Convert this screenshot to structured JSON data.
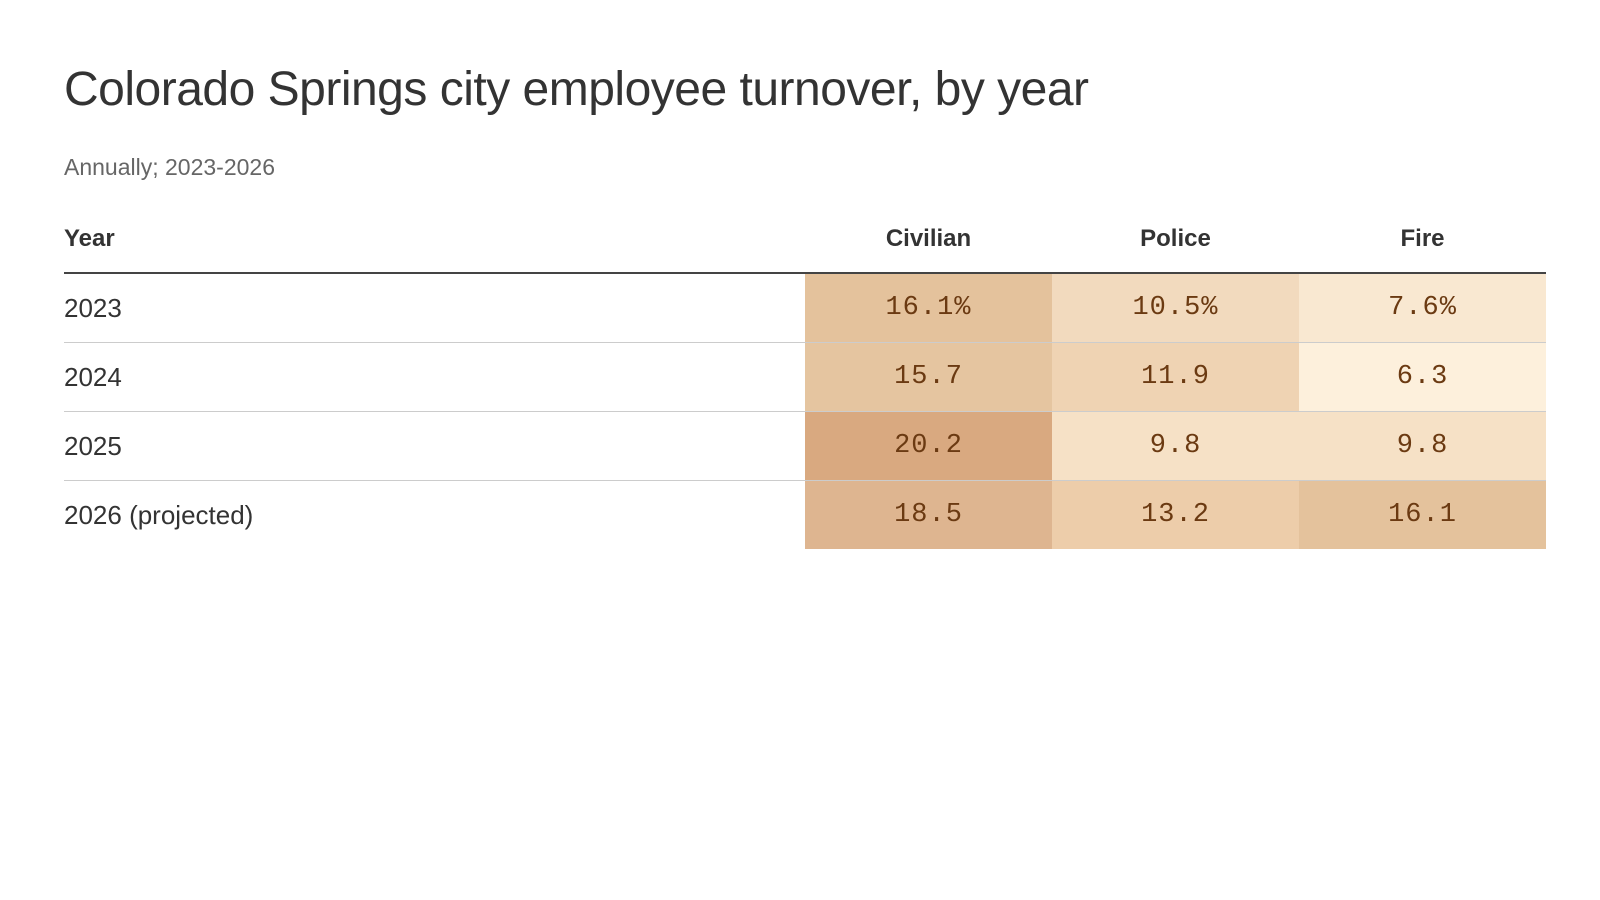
{
  "header": {
    "title": "Colorado Springs city employee turnover, by year",
    "subtitle": "Annually; 2023-2026"
  },
  "chart_data": {
    "type": "table",
    "title": "Colorado Springs city employee turnover, by year",
    "subtitle": "Annually; 2023-2026",
    "columns": [
      "Year",
      "Civilian",
      "Police",
      "Fire"
    ],
    "rows": [
      {
        "year": "2023",
        "values": [
          16.1,
          10.5,
          7.6
        ],
        "labels": [
          "16.1%",
          "10.5%",
          "7.6%"
        ],
        "colors": [
          "#e4c29c",
          "#f2dabe",
          "#f9e8d1"
        ]
      },
      {
        "year": "2024",
        "values": [
          15.7,
          11.9,
          6.3
        ],
        "labels": [
          "15.7",
          "11.9",
          "6.3"
        ],
        "colors": [
          "#e5c5a0",
          "#efd3b3",
          "#fdf0dc"
        ]
      },
      {
        "year": "2025",
        "values": [
          20.2,
          9.8,
          9.8
        ],
        "labels": [
          "20.2",
          "9.8",
          "9.8"
        ],
        "colors": [
          "#d9a980",
          "#f6e1c6",
          "#f6e1c6"
        ]
      },
      {
        "year": "2026 (projected)",
        "values": [
          18.5,
          13.2,
          16.1
        ],
        "labels": [
          "18.5",
          "13.2",
          "16.1"
        ],
        "colors": [
          "#deb590",
          "#edcdaa",
          "#e4c29c"
        ]
      }
    ]
  }
}
